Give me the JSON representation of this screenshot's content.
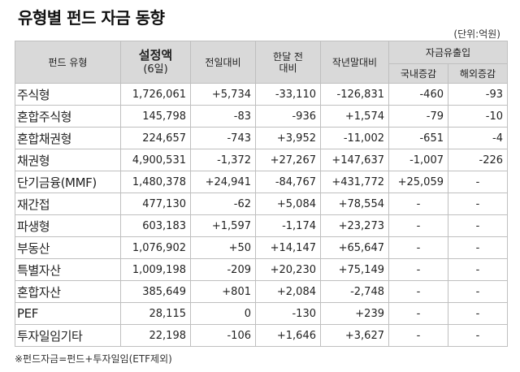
{
  "title": "유형별 펀드 자금 동향",
  "unit": "(단위:억원)",
  "header": {
    "fund_type": "펀드 유형",
    "balance": "설정액",
    "balance_date": "(6일)",
    "prev_day": "전일대비",
    "month_ago_l1": "한달 전",
    "month_ago_l2": "대비",
    "year_end": "작년말대비",
    "flow": "자금유출입",
    "domestic": "국내증감",
    "overseas": "해외증감"
  },
  "rows": [
    {
      "type": "주식형",
      "balance": "1,726,061",
      "prev_day": "+5,734",
      "month_ago": "-33,110",
      "year_end": "-126,831",
      "domestic": "-460",
      "overseas": "-93"
    },
    {
      "type": "혼합주식형",
      "balance": "145,798",
      "prev_day": "-83",
      "month_ago": "-936",
      "year_end": "+1,574",
      "domestic": "-79",
      "overseas": "-10"
    },
    {
      "type": "혼합채권형",
      "balance": "224,657",
      "prev_day": "-743",
      "month_ago": "+3,952",
      "year_end": "-11,002",
      "domestic": "-651",
      "overseas": "-4"
    },
    {
      "type": "채권형",
      "balance": "4,900,531",
      "prev_day": "-1,372",
      "month_ago": "+27,267",
      "year_end": "+147,637",
      "domestic": "-1,007",
      "overseas": "-226"
    },
    {
      "type": "단기금융(MMF)",
      "balance": "1,480,378",
      "prev_day": "+24,941",
      "month_ago": "-84,767",
      "year_end": "+431,772",
      "domestic": "+25,059",
      "overseas": "-"
    },
    {
      "type": "재간접",
      "balance": "477,130",
      "prev_day": "-62",
      "month_ago": "+5,084",
      "year_end": "+78,554",
      "domestic": "-",
      "overseas": "-"
    },
    {
      "type": "파생형",
      "balance": "603,183",
      "prev_day": "+1,597",
      "month_ago": "-1,174",
      "year_end": "+23,273",
      "domestic": "-",
      "overseas": "-"
    },
    {
      "type": "부동산",
      "balance": "1,076,902",
      "prev_day": "+50",
      "month_ago": "+14,147",
      "year_end": "+65,647",
      "domestic": "-",
      "overseas": "-"
    },
    {
      "type": "특별자산",
      "balance": "1,009,198",
      "prev_day": "-209",
      "month_ago": "+20,230",
      "year_end": "+75,149",
      "domestic": "-",
      "overseas": "-"
    },
    {
      "type": "혼합자산",
      "balance": "385,649",
      "prev_day": "+801",
      "month_ago": "+2,084",
      "year_end": "-2,748",
      "domestic": "-",
      "overseas": "-"
    },
    {
      "type": "PEF",
      "balance": "28,115",
      "prev_day": "0",
      "month_ago": "-130",
      "year_end": "+239",
      "domestic": "-",
      "overseas": "-"
    },
    {
      "type": "투자일임기타",
      "balance": "22,198",
      "prev_day": "-106",
      "month_ago": "+1,646",
      "year_end": "+3,627",
      "domestic": "-",
      "overseas": "-"
    }
  ],
  "footnote": "※펀드자금=펀드+투자일임(ETF제외)"
}
